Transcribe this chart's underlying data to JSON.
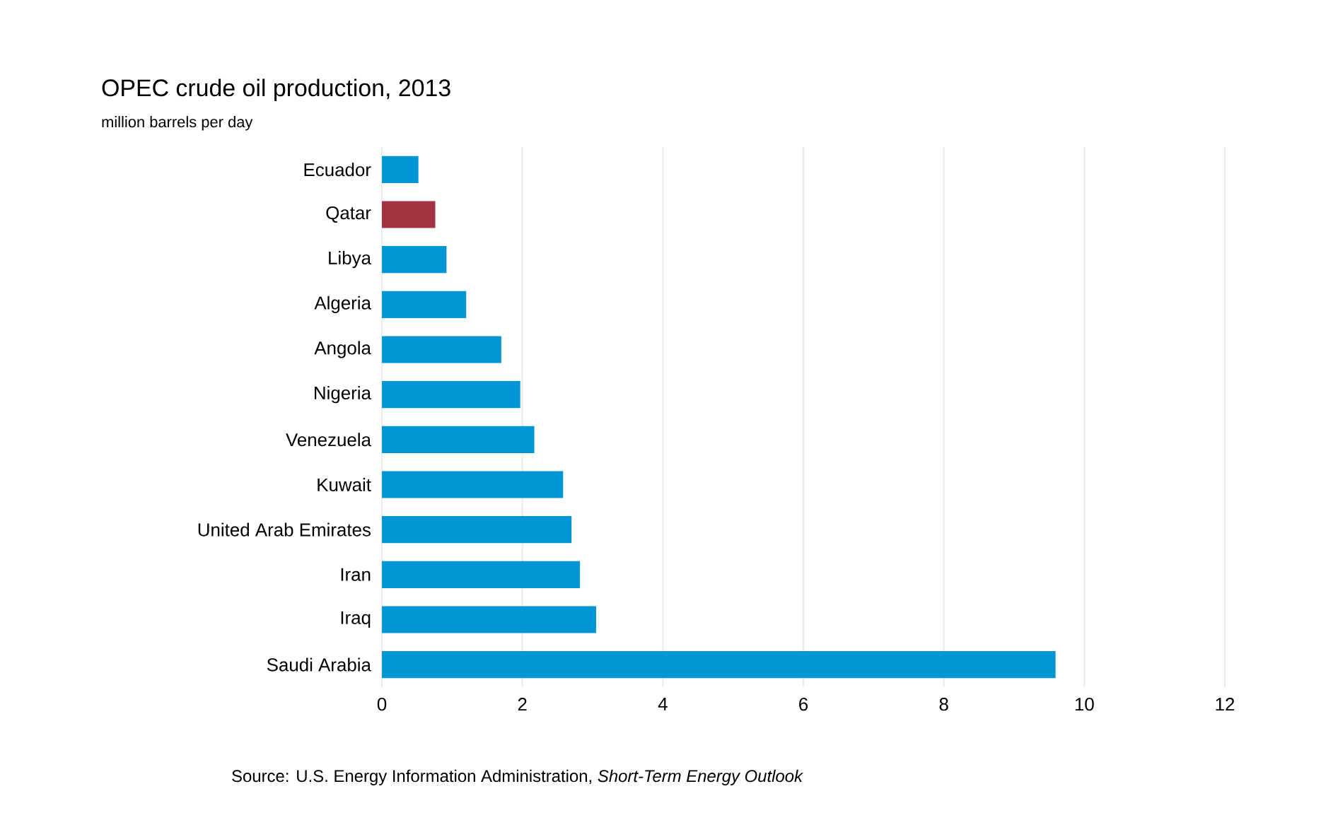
{
  "chart_data": {
    "type": "bar",
    "orientation": "horizontal",
    "title": "OPEC crude oil production, 2013",
    "subtitle": "million barrels per day",
    "categories": [
      "Ecuador",
      "Qatar",
      "Libya",
      "Algeria",
      "Angola",
      "Nigeria",
      "Venezuela",
      "Kuwait",
      "United Arab Emirates",
      "Iran",
      "Iraq",
      "Saudi Arabia"
    ],
    "values": [
      0.52,
      0.76,
      0.92,
      1.2,
      1.7,
      1.97,
      2.17,
      2.58,
      2.7,
      2.82,
      3.05,
      9.59
    ],
    "colors": [
      "#0096d6",
      "#a33340",
      "#0096d6",
      "#0096d6",
      "#0096d6",
      "#0096d6",
      "#0096d6",
      "#0096d6",
      "#0096d6",
      "#0096d6",
      "#0096d6",
      "#0096d6"
    ],
    "xlim": [
      0,
      12
    ],
    "xticks": [
      0,
      2,
      4,
      6,
      8,
      10,
      12
    ],
    "grid": "x",
    "annotations": [
      "Source: U.S. Energy Information Administration, *Short-Term Energy Outlook*"
    ]
  }
}
